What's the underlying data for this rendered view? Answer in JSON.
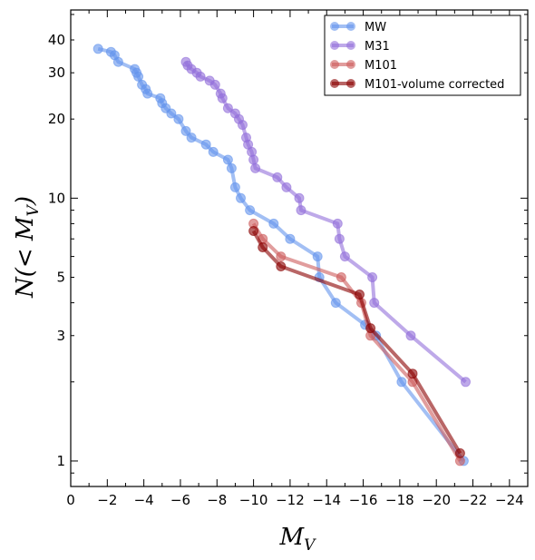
{
  "chart_data": {
    "type": "line",
    "title": "",
    "xlabel": "M_V",
    "ylabel": "N(< M_V)",
    "xlabel_parts": {
      "main": "M",
      "sub": "V"
    },
    "ylabel_parts": {
      "pre": "N(< ",
      "main": "M",
      "sub": "V",
      "post": ")"
    },
    "x_direction": "reversed",
    "xlim": [
      0,
      -25
    ],
    "ylim": [
      0.8,
      52
    ],
    "y_scale": "log",
    "x_ticks": [
      0,
      -2,
      -4,
      -6,
      -8,
      -10,
      -12,
      -14,
      -16,
      -18,
      -20,
      -22,
      -24
    ],
    "x_tick_labels": [
      "0",
      "−2",
      "−4",
      "−6",
      "−8",
      "−10",
      "−12",
      "−14",
      "−16",
      "−18",
      "−20",
      "−22",
      "−24"
    ],
    "y_ticks": [
      1,
      3,
      5,
      10,
      20,
      30,
      40
    ],
    "y_tick_labels": [
      "1",
      "3",
      "5",
      "10",
      "20",
      "30",
      "40"
    ],
    "legend": {
      "position": "top-right"
    },
    "series": [
      {
        "name": "MW",
        "color": "#6495ed",
        "x": [
          -1.5,
          -2.2,
          -2.4,
          -2.6,
          -3.5,
          -3.6,
          -3.7,
          -3.9,
          -4.1,
          -4.2,
          -4.9,
          -5.0,
          -5.2,
          -5.5,
          -5.9,
          -6.3,
          -6.6,
          -7.4,
          -7.8,
          -8.6,
          -8.8,
          -9.0,
          -9.3,
          -9.8,
          -11.1,
          -12.0,
          -13.5,
          -13.6,
          -14.5,
          -16.1,
          -16.7,
          -18.1,
          -21.5
        ],
        "y": [
          37,
          36,
          35,
          33,
          31,
          30,
          29,
          27,
          26,
          25,
          24,
          23,
          22,
          21,
          20,
          18,
          17,
          16,
          15,
          14,
          13,
          11,
          10,
          9,
          8,
          7,
          6,
          5,
          4,
          3.3,
          3,
          2,
          1
        ]
      },
      {
        "name": "M31",
        "color": "#9370db",
        "x": [
          -6.3,
          -6.4,
          -6.6,
          -6.9,
          -7.1,
          -7.6,
          -7.9,
          -8.2,
          -8.3,
          -8.6,
          -9.0,
          -9.2,
          -9.4,
          -9.6,
          -9.7,
          -9.9,
          -10.0,
          -10.1,
          -11.3,
          -11.8,
          -12.5,
          -12.6,
          -14.6,
          -14.7,
          -15.0,
          -16.5,
          -16.6,
          -18.6,
          -21.6
        ],
        "y": [
          33,
          32,
          31,
          30,
          29,
          28,
          27,
          25,
          24,
          22,
          21,
          20,
          19,
          17,
          16,
          15,
          14,
          13,
          12,
          11,
          10,
          9,
          8,
          7,
          6,
          5,
          4,
          3,
          2
        ]
      },
      {
        "name": "M101",
        "color": "#cd5c5c",
        "x": [
          -10.0,
          -10.5,
          -11.5,
          -14.8,
          -15.9,
          -16.4,
          -18.7,
          -21.3
        ],
        "y": [
          8,
          7,
          6,
          5,
          4,
          3,
          2,
          1
        ]
      },
      {
        "name": "M101-volume corrected",
        "color": "#8b0000",
        "x": [
          -10.0,
          -10.5,
          -11.5,
          -15.8,
          -16.4,
          -18.7,
          -21.3
        ],
        "y": [
          7.5,
          6.5,
          5.5,
          4.3,
          3.2,
          2.15,
          1.07
        ]
      }
    ]
  }
}
